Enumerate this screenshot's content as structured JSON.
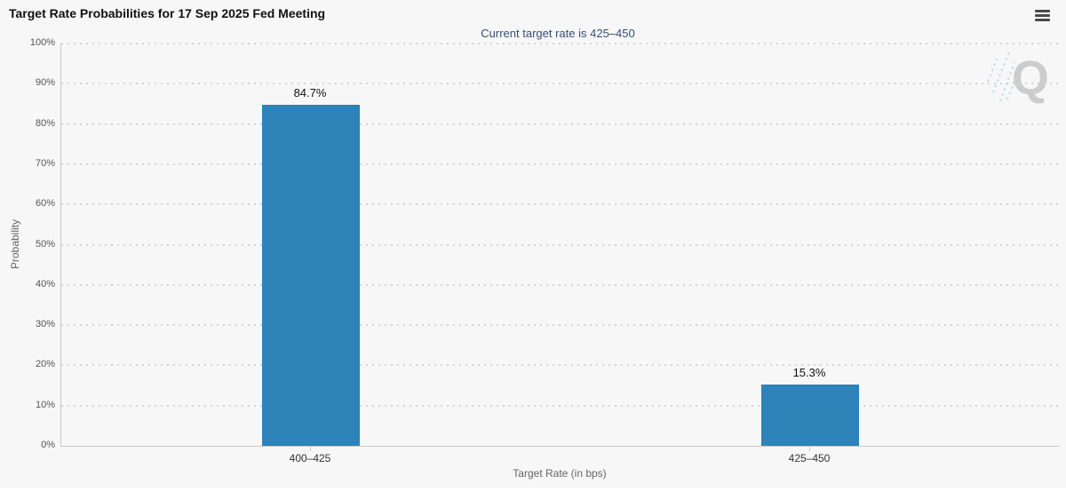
{
  "chart_data": {
    "type": "bar",
    "title": "Target Rate Probabilities for 17 Sep 2025 Fed Meeting",
    "subtitle": "Current target rate is 425–450",
    "categories": [
      "400–425",
      "425–450"
    ],
    "values": [
      84.7,
      15.3
    ],
    "data_labels": [
      "84.7%",
      "15.3%"
    ],
    "xlabel": "Target Rate (in bps)",
    "ylabel": "Probability",
    "ylim": [
      0,
      100
    ],
    "ytick_step": 10,
    "ytick_labels": [
      "100%",
      "90%",
      "80%",
      "70%",
      "60%",
      "50%",
      "40%",
      "30%",
      "20%",
      "10%",
      "0%"
    ],
    "legend": "none",
    "grid": "horizontal-dotted",
    "watermark_letter": "Q",
    "colors": {
      "bar": "#2d82b8",
      "background": "#f7f7f7",
      "grid": "#d4d4d4",
      "axis_line": "#c9c9c9",
      "tick_label": "#555555",
      "category_label": "#333333",
      "axis_title": "#666666",
      "subtitle": "#35507a",
      "data_label": "#111111",
      "watermark_q": "#c8c8c8",
      "watermark_dashes": "#9fd0e8"
    }
  },
  "toolbar": {
    "menu_icon": "hamburger-icon"
  }
}
